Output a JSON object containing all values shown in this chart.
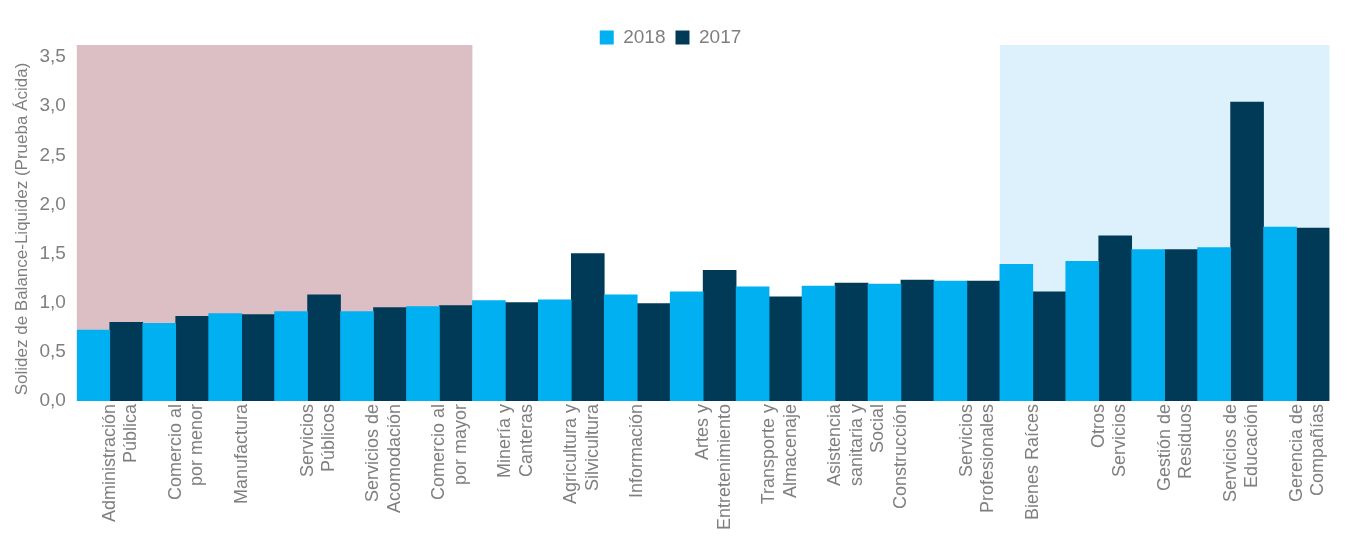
{
  "chart_data": {
    "type": "bar",
    "ylabel": "Solidez de Balance-Liquidez (Prueba Ácida)",
    "categories": [
      "Administración Pública",
      "Comercio al por menor",
      "Manufactura",
      "Servicios Públicos",
      "Servicios de Acomodación",
      "Comercio al por mayor",
      "Minería y Canteras",
      "Agricultura y Silvicultura",
      "Información",
      "Artes y Entretenimiento",
      "Transporte y Almacenaje",
      "Asistencia sanitaria y Social",
      "Construcción",
      "Servicios Profesionales",
      "Bienes Raíces",
      "Otros Servicios",
      "Gestión de Residuos",
      "Servicios de Educación",
      "Gerencia de Compañías"
    ],
    "series": [
      {
        "name": "2018",
        "color": "#00b0f0",
        "values": [
          0.72,
          0.79,
          0.89,
          0.91,
          0.91,
          0.96,
          1.02,
          1.03,
          1.08,
          1.11,
          1.16,
          1.17,
          1.19,
          1.22,
          1.39,
          1.42,
          1.54,
          1.56,
          1.77
        ]
      },
      {
        "name": "2017",
        "color": "#003a57",
        "values": [
          0.8,
          0.86,
          0.88,
          1.08,
          0.95,
          0.97,
          1.0,
          1.5,
          0.99,
          1.33,
          1.06,
          1.2,
          1.23,
          1.22,
          1.11,
          1.68,
          1.54,
          3.04,
          1.76
        ]
      }
    ],
    "ylim": [
      0,
      3.5
    ],
    "yticks": [
      {
        "value": 0,
        "label": "0,0"
      },
      {
        "value": 0.5,
        "label": "0,5"
      },
      {
        "value": 1,
        "label": "1,0"
      },
      {
        "value": 1.5,
        "label": "1,5"
      },
      {
        "value": 2,
        "label": "2,0"
      },
      {
        "value": 2.5,
        "label": "2,5"
      },
      {
        "value": 3,
        "label": "3,0"
      },
      {
        "value": 3.5,
        "label": "3,5"
      }
    ],
    "bands": [
      {
        "axis": "x",
        "from": "Administración Pública",
        "to": "Comercio al por mayor",
        "color": "#c08a93"
      },
      {
        "axis": "x",
        "from": "Bienes Raíces",
        "to": "Gerencia de Compañías",
        "color": "#bfe6f8"
      }
    ],
    "grid": false,
    "legend": "top"
  }
}
